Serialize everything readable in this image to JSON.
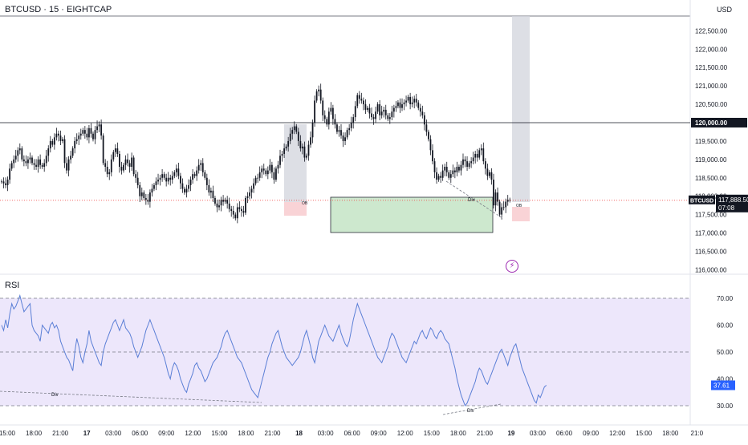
{
  "header": {
    "symbol": "BTCUSD · 15 · EIGHTCAP",
    "currency": "USD"
  },
  "price_pane": {
    "price_ticks": [
      "122,500.00",
      "122,000.00",
      "121,500.00",
      "121,000.00",
      "120,500.00",
      "119,500.00",
      "119,000.00",
      "118,500.00",
      "118,000.00",
      "117,500.00",
      "117,000.00",
      "116,500.00",
      "116,000.00"
    ],
    "hline_label": "120,000.00",
    "current_badge": {
      "symbol": "BTCUSD",
      "price": "117,888.50",
      "countdown": "07:08"
    },
    "ob_label": "OB",
    "div_label": "Div",
    "colors": {
      "up": "#26a69a",
      "down": "#ef5350",
      "candle": "#131722",
      "zone_green": "#c8e6c9",
      "zone_grey": "#d1d4dc",
      "zone_red": "#f8c8cc",
      "current": "#ef5350",
      "badge": "#131722"
    }
  },
  "rsi_pane": {
    "label": "RSI",
    "ticks": [
      "70.00",
      "60.00",
      "50.00",
      "40.00",
      "30.00"
    ],
    "current_value": "37.61",
    "div_label": "Div",
    "colors": {
      "line": "#5b7fd6",
      "band": "#ede7fb",
      "badge": "#2962ff"
    }
  },
  "time_axis": {
    "labels": [
      "15:00",
      "18:00",
      "21:00",
      "17",
      "03:00",
      "06:00",
      "09:00",
      "12:00",
      "15:00",
      "18:00",
      "21:00",
      "18",
      "03:00",
      "06:00",
      "09:00",
      "12:00",
      "15:00",
      "18:00",
      "21:00",
      "19",
      "03:00",
      "06:00",
      "09:00",
      "12:00",
      "15:00",
      "18:00",
      "21:0"
    ],
    "bold": [
      3,
      11,
      19
    ]
  },
  "chart_data": [
    {
      "type": "candlestick",
      "title": "BTCUSD · 15 · EIGHTCAP",
      "ylim": [
        116000,
        122900
      ],
      "x_range": [
        "16 15:00",
        "19 21:00"
      ],
      "bar_interval_minutes": 15,
      "horizontal_lines": [
        120000
      ],
      "current_price": 117888.5,
      "series": [
        {
          "name": "BTCUSD",
          "close": [
            118400,
            118350,
            118300,
            118450,
            118750,
            118900,
            119000,
            119100,
            119250,
            119300,
            119000,
            118950,
            118900,
            119000,
            119050,
            118900,
            118850,
            118800,
            119000,
            118850,
            118800,
            118900,
            119100,
            119300,
            119500,
            119400,
            119600,
            119700,
            119650,
            119500,
            119550,
            118900,
            118700,
            119000,
            119100,
            119300,
            119500,
            119550,
            119650,
            119700,
            119800,
            119700,
            119600,
            119850,
            119700,
            119550,
            119800,
            119900,
            119950,
            119650,
            118900,
            118800,
            118600,
            118650,
            119000,
            119200,
            119300,
            119150,
            118800,
            118700,
            118850,
            119000,
            118900,
            118800,
            119050,
            118600,
            118500,
            118300,
            118000,
            118100,
            117950,
            117900,
            117850,
            118100,
            118200,
            118300,
            118400,
            118450,
            118500,
            118600,
            118500,
            118400,
            118500,
            118450,
            118550,
            118650,
            118750,
            118550,
            118350,
            118200,
            118100,
            118200,
            118300,
            118450,
            118600,
            118550,
            118700,
            118850,
            118900,
            118650,
            118500,
            118300,
            118100,
            118150,
            117950,
            117800,
            117700,
            117750,
            117900,
            117850,
            117900,
            117800,
            117650,
            117600,
            117500,
            117400,
            117700,
            117650,
            117600,
            117550,
            117950,
            118000,
            118100,
            118200,
            118350,
            118500,
            118500,
            118650,
            118750,
            118700,
            118600,
            118700,
            118850,
            118650,
            118450,
            118750,
            118850,
            119100,
            119150,
            119300,
            119350,
            119500,
            119700,
            119800,
            119900,
            119750,
            119500,
            119300,
            119350,
            119050,
            119100,
            119400,
            119600,
            120000,
            120600,
            120850,
            120900,
            120600,
            120200,
            120100,
            119950,
            120300,
            120400,
            120100,
            119950,
            119750,
            119800,
            119650,
            119500,
            119600,
            119800,
            119850,
            120000,
            120150,
            120450,
            120750,
            120650,
            120600,
            120500,
            120350,
            120400,
            120250,
            120150,
            120100,
            120300,
            120500,
            120200,
            120300,
            120350,
            120200,
            120100,
            120150,
            120300,
            120400,
            120450,
            120550,
            120400,
            120500,
            120550,
            120600,
            120700,
            120500,
            120550,
            120650,
            120550,
            120400,
            120300,
            120200,
            119950,
            119750,
            119550,
            119250,
            118950,
            118650,
            118450,
            118550,
            118500,
            118700,
            118800,
            118650,
            118500,
            118600,
            118700,
            118650,
            118800,
            118700,
            118850,
            119000,
            118950,
            118800,
            118900,
            118950,
            119050,
            119150,
            119050,
            119250,
            119300,
            118950,
            118750,
            118550,
            118650,
            118450,
            117750,
            118100,
            117850,
            117500,
            117700,
            117700,
            117850,
            117900,
            117888.5
          ]
        }
      ]
    },
    {
      "type": "line",
      "title": "RSI",
      "ylim": [
        27,
        74
      ],
      "bands": [
        30,
        50,
        70
      ],
      "current_value": 37.61,
      "series": [
        {
          "name": "RSI",
          "values": [
            60,
            58,
            62,
            59,
            64,
            68,
            66,
            67,
            69,
            71,
            68,
            65,
            66,
            67,
            68,
            60,
            58,
            57,
            56,
            54,
            60,
            59,
            58,
            57,
            60,
            61,
            59,
            60,
            58,
            54,
            52,
            50,
            48,
            47,
            45,
            43,
            50,
            55,
            52,
            48,
            46,
            50,
            53,
            58,
            54,
            52,
            50,
            48,
            46,
            45,
            50,
            53,
            55,
            57,
            59,
            61,
            62,
            60,
            58,
            60,
            62,
            59,
            58,
            57,
            55,
            52,
            50,
            48,
            50,
            52,
            55,
            58,
            60,
            62,
            60,
            58,
            56,
            54,
            52,
            50,
            48,
            45,
            42,
            40,
            44,
            46,
            45,
            43,
            40,
            38,
            36,
            35,
            38,
            40,
            42,
            45,
            46,
            44,
            43,
            41,
            39,
            40,
            42,
            44,
            46,
            47,
            48,
            50,
            52,
            55,
            57,
            58,
            56,
            54,
            52,
            50,
            48,
            47,
            46,
            44,
            42,
            40,
            38,
            36,
            35,
            34,
            33,
            36,
            39,
            42,
            45,
            48,
            50,
            53,
            55,
            57,
            58,
            55,
            52,
            50,
            48,
            47,
            46,
            45,
            46,
            47,
            48,
            50,
            53,
            56,
            58,
            55,
            52,
            48,
            46,
            50,
            54,
            56,
            58,
            60,
            58,
            56,
            55,
            54,
            56,
            58,
            60,
            57,
            55,
            53,
            52,
            54,
            58,
            62,
            65,
            68,
            66,
            64,
            62,
            60,
            58,
            56,
            54,
            52,
            50,
            48,
            47,
            46,
            48,
            50,
            52,
            55,
            57,
            56,
            54,
            52,
            50,
            48,
            47,
            46,
            48,
            50,
            52,
            54,
            53,
            55,
            57,
            58,
            56,
            55,
            57,
            59,
            58,
            56,
            55,
            57,
            58,
            57,
            55,
            54,
            53,
            50,
            47,
            44,
            40,
            37,
            34,
            32,
            30,
            31,
            33,
            35,
            37,
            39,
            42,
            44,
            43,
            41,
            39,
            38,
            40,
            42,
            44,
            46,
            48,
            50,
            51,
            49,
            47,
            45,
            48,
            50,
            52,
            53,
            50,
            47,
            44,
            42,
            40,
            38,
            36,
            34,
            32,
            31,
            34,
            33,
            35,
            37,
            37.61
          ]
        }
      ]
    }
  ]
}
